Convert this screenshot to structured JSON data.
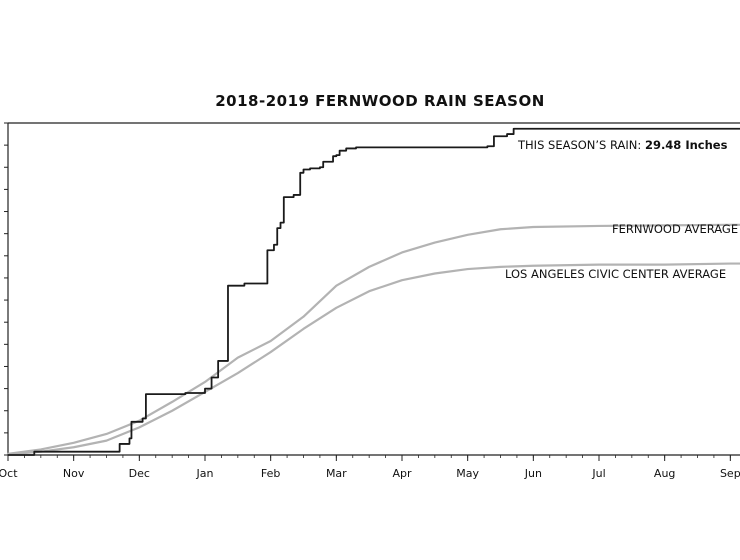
{
  "chart_data": {
    "type": "line",
    "title": "2018-2019 FERNWOOD RAIN SEASON",
    "xlabel": "",
    "ylabel": "",
    "x_axis": {
      "kind": "month",
      "tick_labels": [
        "Oct",
        "Nov",
        "Dec",
        "Jan",
        "Feb",
        "Mar",
        "Apr",
        "May",
        "Jun",
        "Jul",
        "Aug",
        "Sep"
      ],
      "range_months": [
        0,
        12
      ]
    },
    "y_axis": {
      "tick_labels_shown": false,
      "ylim": [
        0,
        30
      ],
      "tick_step": 2
    },
    "grid": false,
    "series": [
      {
        "name": "THIS SEASON'S RAIN",
        "label_prefix": "THIS SEASON’S RAIN: ",
        "label_value": "29.48 Inches",
        "color": "#1a1a1a",
        "type": "step",
        "x": [
          0,
          0.4,
          1.7,
          1.85,
          1.88,
          2.05,
          2.1,
          2.7,
          3.0,
          3.1,
          3.2,
          3.35,
          3.6,
          3.95,
          4.05,
          4.1,
          4.15,
          4.2,
          4.35,
          4.45,
          4.5,
          4.6,
          4.75,
          4.8,
          4.95,
          5.0,
          5.05,
          5.15,
          5.3,
          7.3,
          7.4,
          7.6,
          7.7,
          12.0
        ],
        "y": [
          0,
          0.3,
          1.0,
          1.5,
          3.0,
          3.3,
          5.5,
          5.6,
          6.0,
          7.0,
          8.5,
          15.3,
          15.5,
          18.5,
          19.0,
          20.5,
          21.0,
          23.3,
          23.5,
          25.5,
          25.8,
          25.9,
          26.0,
          26.5,
          27.0,
          27.1,
          27.5,
          27.7,
          27.8,
          27.9,
          28.8,
          29.0,
          29.48,
          29.48
        ]
      },
      {
        "name": "FERNWOOD AVERAGE",
        "label": "FERNWOOD AVERAGE",
        "color": "#b3b3b3",
        "x": [
          0,
          0.5,
          1.0,
          1.5,
          2.0,
          2.5,
          3.0,
          3.5,
          4.0,
          4.5,
          5.0,
          5.5,
          6.0,
          6.5,
          7.0,
          7.5,
          8.0,
          9.0,
          10.0,
          11.0,
          12.0
        ],
        "y": [
          0.1,
          0.5,
          1.1,
          1.9,
          3.1,
          4.8,
          6.6,
          8.8,
          10.3,
          12.5,
          15.3,
          17.0,
          18.3,
          19.2,
          19.9,
          20.4,
          20.6,
          20.7,
          20.75,
          20.8,
          20.8
        ]
      },
      {
        "name": "LOS ANGELES CIVIC CENTER AVERAGE",
        "label": "LOS ANGELES CIVIC CENTER AVERAGE",
        "color": "#b3b3b3",
        "x": [
          0,
          0.5,
          1.0,
          1.5,
          2.0,
          2.5,
          3.0,
          3.5,
          4.0,
          4.5,
          5.0,
          5.5,
          6.0,
          6.5,
          7.0,
          7.5,
          8.0,
          9.0,
          10.0,
          11.0,
          12.0
        ],
        "y": [
          0.05,
          0.3,
          0.7,
          1.3,
          2.5,
          4.0,
          5.7,
          7.4,
          9.3,
          11.4,
          13.3,
          14.8,
          15.8,
          16.4,
          16.8,
          17.0,
          17.1,
          17.2,
          17.2,
          17.3,
          17.3
        ]
      }
    ]
  }
}
